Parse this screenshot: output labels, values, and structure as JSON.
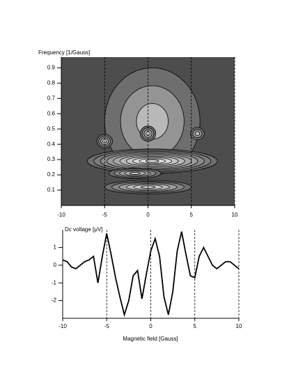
{
  "chart_data": [
    {
      "type": "contour",
      "y_label": "Frequency [1/Gauss]",
      "xlim": [
        -10,
        10
      ],
      "ylim": [
        0,
        0.97
      ],
      "xticks": [
        -10,
        -5,
        0,
        5,
        10
      ],
      "yticks": [
        0.1,
        0.2,
        0.3,
        0.4,
        0.5,
        0.6,
        0.7,
        0.8,
        0.9
      ],
      "grid": "dashed",
      "peaks": [
        {
          "x": 0.5,
          "y": 0.55,
          "width": 11,
          "height": 0.7,
          "levels": 3
        },
        {
          "x": 0.5,
          "y": 0.29,
          "width": 15,
          "height": 0.16,
          "levels": 10
        },
        {
          "x": 0,
          "y": 0.12,
          "width": 10,
          "height": 0.09,
          "levels": 6
        },
        {
          "x": -1.5,
          "y": 0.21,
          "width": 6,
          "height": 0.07,
          "levels": 5
        },
        {
          "x": -5,
          "y": 0.42,
          "width": 1.8,
          "height": 0.09,
          "levels": 4
        },
        {
          "x": 0,
          "y": 0.47,
          "width": 1.8,
          "height": 0.1,
          "levels": 4
        },
        {
          "x": 5.7,
          "y": 0.47,
          "width": 1.6,
          "height": 0.08,
          "levels": 3
        }
      ]
    },
    {
      "type": "line",
      "y_label": "Dc voltage [μV]",
      "x_label": "Magnetic field [Gauss]",
      "xlim": [
        -10,
        10
      ],
      "ylim": [
        -3,
        2
      ],
      "xticks": [
        -10,
        -5,
        0,
        5,
        10
      ],
      "yticks": [
        -2,
        -1,
        0,
        1
      ],
      "grid": "dashed",
      "color": "#000000",
      "x": [
        -10,
        -9.5,
        -9,
        -8.5,
        -8,
        -7.5,
        -7,
        -6.5,
        -6,
        -5.5,
        -5,
        -4.5,
        -4,
        -3.5,
        -3,
        -2.5,
        -2,
        -1.5,
        -1,
        -0.5,
        0,
        0.5,
        1,
        1.5,
        2,
        2.5,
        3,
        3.5,
        4,
        4.5,
        5,
        5.5,
        6,
        6.5,
        7,
        7.5,
        8,
        8.5,
        9,
        9.5,
        10
      ],
      "values": [
        0.3,
        0.2,
        -0.1,
        -0.2,
        0,
        0.2,
        0.3,
        0.5,
        -1.0,
        0.5,
        1.8,
        0.6,
        -0.7,
        -1.8,
        -2.8,
        -2.0,
        -0.6,
        -0.3,
        -1.9,
        -0.5,
        0.8,
        1.5,
        0.5,
        -1.8,
        -2.8,
        -1.5,
        0.8,
        1.9,
        0.6,
        -0.6,
        -0.7,
        0.5,
        1.0,
        0.5,
        0,
        -0.2,
        0,
        0.2,
        0.2,
        0,
        -0.2
      ]
    }
  ]
}
